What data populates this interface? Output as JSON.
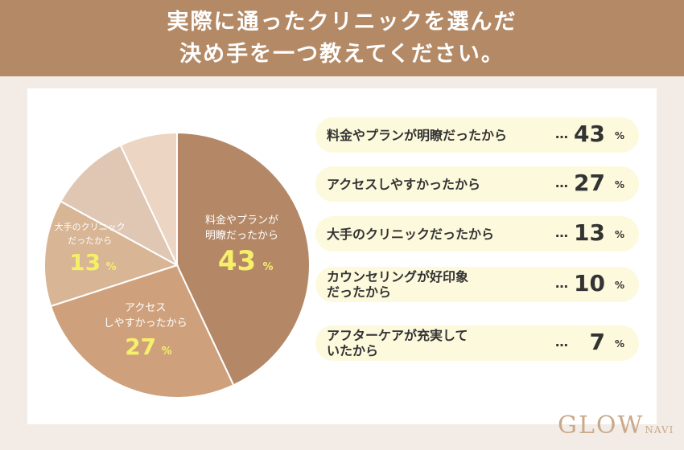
{
  "header": {
    "line1": "実際に通ったクリニックを選んだ",
    "line2": "決め手を一つ教えてください。"
  },
  "chart_data": {
    "type": "pie",
    "title": "実際に通ったクリニックを選んだ決め手を一つ教えてください。",
    "unit": "%",
    "slices": [
      {
        "label": "料金やプランが明瞭だったから",
        "value": 43,
        "color": "#b48866"
      },
      {
        "label": "アクセスしやすかったから",
        "value": 27,
        "color": "#cea17c"
      },
      {
        "label": "大手のクリニックだったから",
        "value": 13,
        "color": "#d7b595"
      },
      {
        "label": "カウンセリングが好印象だったから",
        "value": 10,
        "color": "#e0c7b4"
      },
      {
        "label": "アフターケアが充実していたから",
        "value": 7,
        "color": "#ecd6c3"
      }
    ],
    "pie_labels": [
      {
        "lines": [
          "料金やプランが",
          "明瞭だったから"
        ],
        "value": "43",
        "unit": "%"
      },
      {
        "lines": [
          "アクセス",
          "しやすかったから"
        ],
        "value": "27",
        "unit": "%"
      },
      {
        "lines": [
          "大手のクリニック",
          "だったから"
        ],
        "value": "13",
        "unit": "%"
      }
    ]
  },
  "answers": [
    {
      "label": "料金やプランが明瞭だったから",
      "dots": "…",
      "value": "43",
      "unit": "%"
    },
    {
      "label": "アクセスしやすかったから",
      "dots": "…",
      "value": "27",
      "unit": "%"
    },
    {
      "label": "大手のクリニックだったから",
      "dots": "…",
      "value": "13",
      "unit": "%"
    },
    {
      "label": "カウンセリングが好印象\nだったから",
      "dots": "…",
      "value": "10",
      "unit": "%"
    },
    {
      "label": "アフターケアが充実して\nいたから",
      "dots": "…",
      "value": "7",
      "unit": "%"
    }
  ],
  "logo": {
    "main": "GLOW",
    "sub": "NAVI"
  },
  "colors": {
    "header": "#b48a66",
    "pill": "#fdf9dc",
    "value_label": "#f6ef6a"
  }
}
